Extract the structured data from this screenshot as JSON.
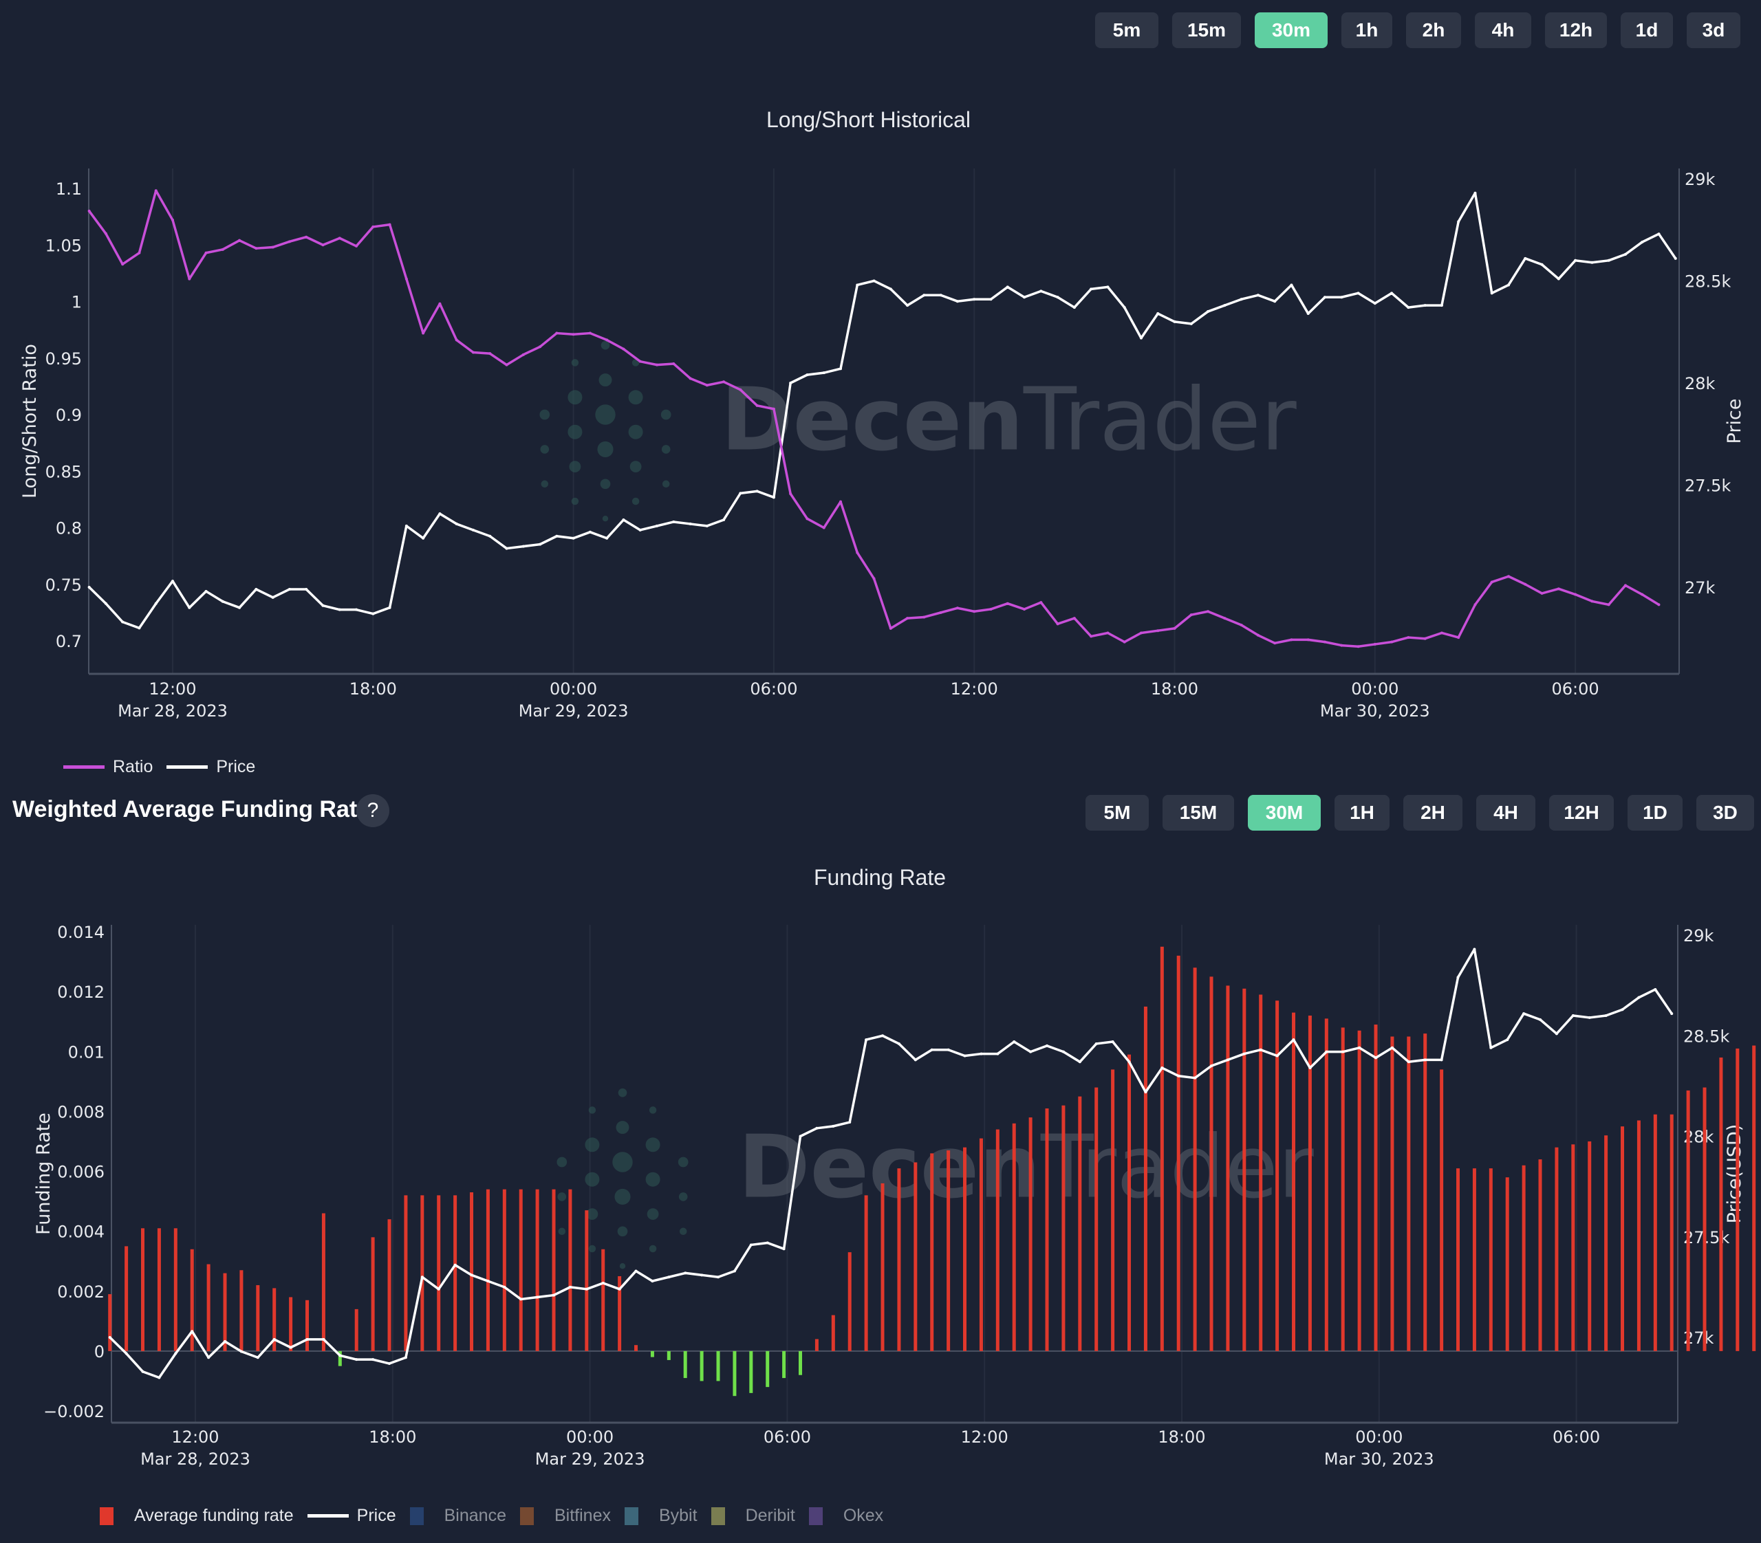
{
  "top_timeframes": {
    "buttons": [
      "5m",
      "15m",
      "30m",
      "1h",
      "2h",
      "4h",
      "12h",
      "1d",
      "3d"
    ],
    "active": "30m"
  },
  "bottom_section": {
    "title": "Weighted Average Funding Rate",
    "help_label": "?"
  },
  "bottom_timeframes": {
    "buttons": [
      "5M",
      "15M",
      "30M",
      "1H",
      "2H",
      "4H",
      "12H",
      "1D",
      "3D"
    ],
    "active": "30M"
  },
  "watermark": {
    "part1": "Decen",
    "part2": "Trader"
  },
  "colors": {
    "background": "#1b2233",
    "accent": "#5fcfa1",
    "ratio": "#c84fd8",
    "price": "#ffffff",
    "funding_positive": "#e0382c",
    "funding_negative": "#6fe04a",
    "binance": "#2f4f7f",
    "bitfinex": "#8a5a3a",
    "bybit": "#4a7f8f",
    "deribit": "#9a9a5a",
    "okex": "#5a4a8a"
  },
  "chart_data": [
    {
      "type": "line",
      "title": "Long/Short Historical",
      "xlabel": "",
      "ylabel": "Long/Short Ratio",
      "y2label": "Price",
      "ylim": [
        0.672,
        1.118
      ],
      "y2lim": [
        26600,
        29050
      ],
      "yticks": [
        "1.1",
        "1.05",
        "1",
        "0.95",
        "0.9",
        "0.85",
        "0.8",
        "0.75",
        "0.7"
      ],
      "yticks_values": [
        1.1,
        1.05,
        1,
        0.95,
        0.9,
        0.85,
        0.8,
        0.75,
        0.7
      ],
      "y2ticks": [
        "29k",
        "28.5k",
        "28k",
        "27.5k",
        "27k"
      ],
      "y2ticks_values": [
        29000,
        28500,
        28000,
        27500,
        27000
      ],
      "xticks": [
        {
          "h": 12,
          "label": "12:00",
          "date": "Mar 28, 2023"
        },
        {
          "h": 18,
          "label": "18:00",
          "date": ""
        },
        {
          "h": 24,
          "label": "00:00",
          "date": "Mar 29, 2023"
        },
        {
          "h": 30,
          "label": "06:00",
          "date": ""
        },
        {
          "h": 36,
          "label": "12:00",
          "date": ""
        },
        {
          "h": 42,
          "label": "18:00",
          "date": ""
        },
        {
          "h": 48,
          "label": "00:00",
          "date": "Mar 30, 2023"
        },
        {
          "h": 54,
          "label": "06:00",
          "date": ""
        }
      ],
      "x_start_hour": 9.5,
      "x_step_hours": 0.5,
      "legend": [
        "Ratio",
        "Price"
      ],
      "legend_position": "bottom-left",
      "series": [
        {
          "name": "Ratio",
          "axis": "y",
          "values": [
            1.08,
            1.06,
            1.033,
            1.043,
            1.098,
            1.072,
            1.02,
            1.043,
            1.046,
            1.054,
            1.047,
            1.048,
            1.053,
            1.057,
            1.05,
            1.056,
            1.049,
            1.066,
            1.068,
            1.02,
            0.972,
            0.998,
            0.966,
            0.955,
            0.954,
            0.944,
            0.953,
            0.96,
            0.972,
            0.971,
            0.972,
            0.966,
            0.958,
            0.947,
            0.944,
            0.945,
            0.932,
            0.926,
            0.929,
            0.922,
            0.908,
            0.905,
            0.83,
            0.808,
            0.8,
            0.823,
            0.778,
            0.755,
            0.711,
            0.72,
            0.721,
            0.725,
            0.729,
            0.726,
            0.728,
            0.733,
            0.728,
            0.734,
            0.715,
            0.72,
            0.704,
            0.707,
            0.699,
            0.707,
            0.709,
            0.711,
            0.723,
            0.726,
            0.72,
            0.714,
            0.705,
            0.698,
            0.701,
            0.701,
            0.699,
            0.696,
            0.695,
            0.697,
            0.699,
            0.703,
            0.702,
            0.707,
            0.703,
            0.732,
            0.752,
            0.757,
            0.75,
            0.742,
            0.746,
            0.741,
            0.735,
            0.732,
            0.749,
            0.741,
            0.732
          ]
        },
        {
          "name": "Price",
          "axis": "y2",
          "values": [
            27000,
            26920,
            26830,
            26800,
            26920,
            27030,
            26900,
            26980,
            26930,
            26900,
            26990,
            26950,
            26990,
            26990,
            26910,
            26890,
            26890,
            26870,
            26900,
            27300,
            27240,
            27360,
            27310,
            27280,
            27250,
            27190,
            27200,
            27210,
            27250,
            27240,
            27270,
            27240,
            27330,
            27280,
            27300,
            27320,
            27310,
            27300,
            27330,
            27460,
            27470,
            27440,
            28000,
            28040,
            28050,
            28070,
            28480,
            28500,
            28460,
            28380,
            28430,
            28430,
            28400,
            28410,
            28410,
            28470,
            28420,
            28450,
            28420,
            28370,
            28460,
            28470,
            28370,
            28220,
            28340,
            28300,
            28290,
            28350,
            28380,
            28410,
            28430,
            28400,
            28480,
            28340,
            28420,
            28420,
            28440,
            28390,
            28440,
            28370,
            28380,
            28380,
            28790,
            28930,
            28440,
            28480,
            28610,
            28580,
            28510,
            28600,
            28590,
            28600,
            28630,
            28690,
            28730,
            28610
          ]
        }
      ]
    },
    {
      "type": "bar",
      "title": "Funding Rate",
      "xlabel": "",
      "ylabel": "Funding Rate",
      "y2label": "Price(USD)",
      "ylim": [
        -0.0024,
        0.0142
      ],
      "y2lim": [
        26600,
        29050
      ],
      "yticks": [
        "0.014",
        "0.012",
        "0.01",
        "0.008",
        "0.006",
        "0.004",
        "0.002",
        "0",
        "−0.002"
      ],
      "yticks_values": [
        0.014,
        0.012,
        0.01,
        0.008,
        0.006,
        0.004,
        0.002,
        0,
        -0.002
      ],
      "y2ticks": [
        "29k",
        "28.5k",
        "28k",
        "27.5k",
        "27k"
      ],
      "y2ticks_values": [
        29000,
        28500,
        28000,
        27500,
        27000
      ],
      "xticks": [
        {
          "h": 12,
          "label": "12:00",
          "date": "Mar 28, 2023"
        },
        {
          "h": 18,
          "label": "18:00",
          "date": ""
        },
        {
          "h": 24,
          "label": "00:00",
          "date": "Mar 29, 2023"
        },
        {
          "h": 30,
          "label": "06:00",
          "date": ""
        },
        {
          "h": 36,
          "label": "12:00",
          "date": ""
        },
        {
          "h": 42,
          "label": "18:00",
          "date": ""
        },
        {
          "h": 48,
          "label": "00:00",
          "date": "Mar 30, 2023"
        },
        {
          "h": 54,
          "label": "06:00",
          "date": ""
        }
      ],
      "x_start_hour": 9.4,
      "x_step_hours": 0.5,
      "legend": [
        "Average funding rate",
        "Price",
        "Binance",
        "Bitfinex",
        "Bybit",
        "Deribit",
        "Okex"
      ],
      "legend_position": "bottom-left",
      "series": [
        {
          "name": "Average funding rate",
          "axis": "y",
          "values": [
            0.0019,
            0.0035,
            0.0041,
            0.0041,
            0.0041,
            0.0034,
            0.0029,
            0.0026,
            0.0027,
            0.0022,
            0.0021,
            0.0018,
            0.0017,
            0.0046,
            -0.0005,
            0.0014,
            0.0038,
            0.0044,
            0.0052,
            0.0052,
            0.0052,
            0.0052,
            0.0053,
            0.0054,
            0.0054,
            0.0054,
            0.0054,
            0.0054,
            0.0054,
            0.0047,
            0.0034,
            0.0025,
            0.0002,
            -0.0002,
            -0.0003,
            -0.0009,
            -0.001,
            -0.001,
            -0.0015,
            -0.0014,
            -0.0012,
            -0.0009,
            -0.0008,
            0.0004,
            0.0012,
            0.0033,
            0.0052,
            0.0056,
            0.0061,
            0.0063,
            0.0066,
            0.0067,
            0.0068,
            0.0071,
            0.0074,
            0.0076,
            0.0078,
            0.0081,
            0.0082,
            0.0085,
            0.0088,
            0.0094,
            0.0099,
            0.0115,
            0.0135,
            0.0132,
            0.0128,
            0.0125,
            0.0122,
            0.0121,
            0.0119,
            0.0117,
            0.0113,
            0.0112,
            0.0111,
            0.0108,
            0.0107,
            0.0109,
            0.0105,
            0.0105,
            0.0106,
            0.0094,
            0.0061,
            0.0061,
            0.0061,
            0.0058,
            0.0062,
            0.0064,
            0.0068,
            0.0069,
            0.007,
            0.0072,
            0.0075,
            0.0077,
            0.0079,
            0.0079,
            0.0087,
            0.0088,
            0.0098,
            0.0101,
            0.0102
          ]
        },
        {
          "name": "Price",
          "axis": "y2",
          "values": [
            27000,
            26920,
            26830,
            26800,
            26920,
            27030,
            26900,
            26980,
            26930,
            26900,
            26990,
            26950,
            26990,
            26990,
            26910,
            26890,
            26890,
            26870,
            26900,
            27300,
            27240,
            27360,
            27310,
            27280,
            27250,
            27190,
            27200,
            27210,
            27250,
            27240,
            27270,
            27240,
            27330,
            27280,
            27300,
            27320,
            27310,
            27300,
            27330,
            27460,
            27470,
            27440,
            28000,
            28040,
            28050,
            28070,
            28480,
            28500,
            28460,
            28380,
            28430,
            28430,
            28400,
            28410,
            28410,
            28470,
            28420,
            28450,
            28420,
            28370,
            28460,
            28470,
            28370,
            28220,
            28340,
            28300,
            28290,
            28350,
            28380,
            28410,
            28430,
            28400,
            28480,
            28340,
            28420,
            28420,
            28440,
            28390,
            28440,
            28370,
            28380,
            28380,
            28790,
            28930,
            28440,
            28480,
            28610,
            28580,
            28510,
            28600,
            28590,
            28600,
            28630,
            28690,
            28730,
            28610
          ]
        }
      ]
    }
  ]
}
